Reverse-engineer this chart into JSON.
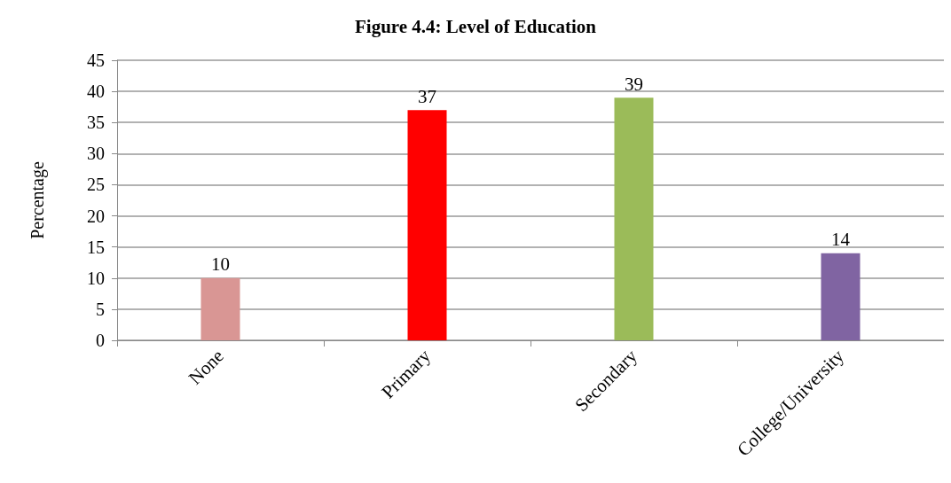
{
  "chart_data": {
    "type": "bar",
    "title": "Figure 4.4: Level of Education",
    "ylabel": "Percentage",
    "categories": [
      "None",
      "Primary",
      "Secondary",
      "College/University"
    ],
    "values": [
      10,
      37,
      39,
      14
    ],
    "colors": [
      "#d99694",
      "#ff0000",
      "#9bbb59",
      "#8064a2"
    ],
    "ylim": [
      0,
      45
    ],
    "yticks": [
      0,
      5,
      10,
      15,
      20,
      25,
      30,
      35,
      40,
      45
    ],
    "grid": "y",
    "data_labels": true
  }
}
